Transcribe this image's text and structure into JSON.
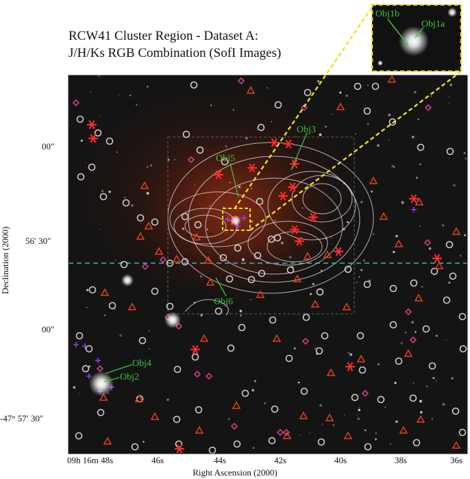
{
  "chart_data": {
    "type": "scatter",
    "title": [
      "RCW41 Cluster Region - Dataset A:",
      "J/H/Ks RGB Combination (SofI Images)"
    ],
    "xlabel": "Right Ascension (2000)",
    "ylabel": "Declination (2000)",
    "x_ticks": [
      "09h 16m 48s",
      "46s",
      "44s",
      "42s",
      "40s",
      "38s",
      "36s"
    ],
    "y_ticks": [
      "00″",
      "56′ 30″",
      "00″",
      "-47° 57′ 30″"
    ],
    "labels": [
      "Obj1b",
      "Obj1a",
      "Obj5",
      "Obj3",
      "Obj6",
      "Obj4",
      "Obj2"
    ],
    "marker_types": [
      "circle",
      "triangle",
      "diamond",
      "asterisk",
      "plus"
    ],
    "colors": {
      "background": "#111111",
      "contour": "#e8e8e8",
      "circle": "#cfcfcf",
      "triangle": "#e8401c",
      "diamond": "#e0409a",
      "asterisk": "#ff2a2a",
      "plus": "#9a3cff",
      "label": "#3ec43e",
      "zoom_line": "#f0e020",
      "dashed_line": "#3fb7c0",
      "nebula": "#8a2a12"
    }
  }
}
